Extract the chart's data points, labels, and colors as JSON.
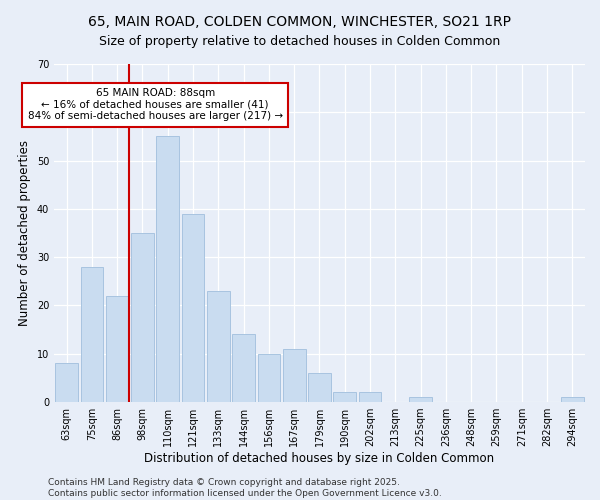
{
  "title1": "65, MAIN ROAD, COLDEN COMMON, WINCHESTER, SO21 1RP",
  "title2": "Size of property relative to detached houses in Colden Common",
  "xlabel": "Distribution of detached houses by size in Colden Common",
  "ylabel": "Number of detached properties",
  "categories": [
    "63sqm",
    "75sqm",
    "86sqm",
    "98sqm",
    "110sqm",
    "121sqm",
    "133sqm",
    "144sqm",
    "156sqm",
    "167sqm",
    "179sqm",
    "190sqm",
    "202sqm",
    "213sqm",
    "225sqm",
    "236sqm",
    "248sqm",
    "259sqm",
    "271sqm",
    "282sqm",
    "294sqm"
  ],
  "values": [
    8,
    28,
    22,
    35,
    55,
    39,
    23,
    14,
    10,
    11,
    6,
    2,
    2,
    0,
    1,
    0,
    0,
    0,
    0,
    0,
    1
  ],
  "bar_color": "#c9dcf0",
  "bar_edge_color": "#a8c4e0",
  "vline_color": "#cc0000",
  "annotation_text": "65 MAIN ROAD: 88sqm\n← 16% of detached houses are smaller (41)\n84% of semi-detached houses are larger (217) →",
  "annotation_box_color": "#ffffff",
  "annotation_box_edge": "#cc0000",
  "ylim": [
    0,
    70
  ],
  "yticks": [
    0,
    10,
    20,
    30,
    40,
    50,
    60,
    70
  ],
  "bg_color": "#e8eef8",
  "plot_bg_color": "#e8eef8",
  "footer": "Contains HM Land Registry data © Crown copyright and database right 2025.\nContains public sector information licensed under the Open Government Licence v3.0.",
  "title_fontsize": 10,
  "subtitle_fontsize": 9,
  "tick_fontsize": 7,
  "label_fontsize": 8.5,
  "footer_fontsize": 6.5,
  "annotation_fontsize": 7.5
}
